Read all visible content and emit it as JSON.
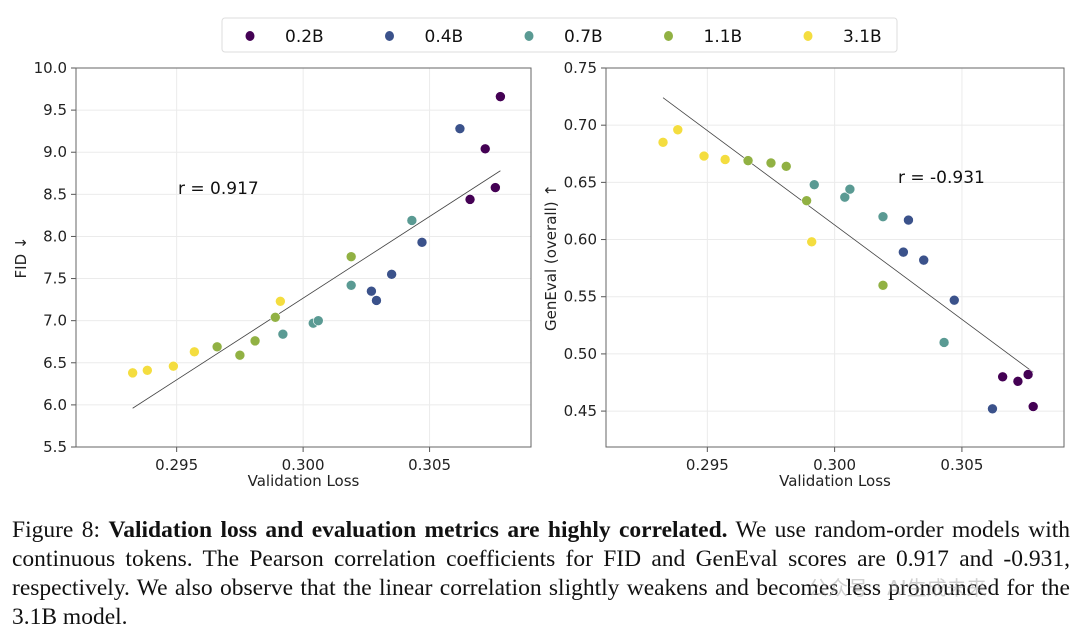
{
  "chart_data": [
    {
      "type": "scatter",
      "title": "",
      "xlabel": "Validation Loss",
      "ylabel": "FID ↓",
      "xlim": [
        0.29102,
        0.30901
      ],
      "ylim": [
        5.5,
        10.0
      ],
      "xticks": [
        "0.295",
        "0.300",
        "0.305"
      ],
      "xtick_values": [
        0.295,
        0.3,
        0.305
      ],
      "yticks": [
        "5.5",
        "6.0",
        "6.5",
        "7.0",
        "7.5",
        "8.0",
        "8.5",
        "9.0",
        "9.5",
        "10.0"
      ],
      "ytick_values": [
        5.5,
        6.0,
        6.5,
        7.0,
        7.5,
        8.0,
        8.5,
        9.0,
        9.5,
        10.0
      ],
      "grid": true,
      "annotation": "r = 0.917",
      "fit_line": {
        "x": [
          0.29326,
          0.3078
        ],
        "y": [
          5.96,
          8.78
        ]
      },
      "series": [
        {
          "name": "0.2B",
          "x": [
            0.3066,
            0.3072,
            0.3076,
            0.3078
          ],
          "y": [
            8.44,
            9.04,
            8.58,
            9.66
          ]
        },
        {
          "name": "0.4B",
          "x": [
            0.3027,
            0.3029,
            0.3035,
            0.3047,
            0.3062
          ],
          "y": [
            7.35,
            7.24,
            7.55,
            7.93,
            9.28
          ]
        },
        {
          "name": "0.7B",
          "x": [
            0.2992,
            0.3004,
            0.3006,
            0.3019,
            0.3043
          ],
          "y": [
            6.84,
            6.97,
            7.0,
            7.42,
            8.19
          ]
        },
        {
          "name": "1.1B",
          "x": [
            0.2966,
            0.2975,
            0.2981,
            0.2989,
            0.3019
          ],
          "y": [
            6.69,
            6.59,
            6.76,
            7.04,
            7.76
          ]
        },
        {
          "name": "3.1B",
          "x": [
            0.29326,
            0.29384,
            0.29487,
            0.2957,
            0.2991
          ],
          "y": [
            6.38,
            6.41,
            6.46,
            6.63,
            7.23
          ]
        }
      ]
    },
    {
      "type": "scatter",
      "title": "",
      "xlabel": "Validation Loss",
      "ylabel": "GenEval (overall) ↑",
      "xlim": [
        0.29102,
        0.30901
      ],
      "ylim": [
        0.4186,
        0.75
      ],
      "xticks": [
        "0.295",
        "0.300",
        "0.305"
      ],
      "xtick_values": [
        0.295,
        0.3,
        0.305
      ],
      "yticks": [
        "0.45",
        "0.50",
        "0.55",
        "0.60",
        "0.65",
        "0.70",
        "0.75"
      ],
      "ytick_values": [
        0.45,
        0.5,
        0.55,
        0.6,
        0.65,
        0.7,
        0.75
      ],
      "grid": true,
      "annotation": "r = -0.931",
      "fit_line": {
        "x": [
          0.29326,
          0.3078
        ],
        "y": [
          0.724,
          0.484
        ]
      },
      "series": [
        {
          "name": "0.2B",
          "x": [
            0.3066,
            0.3072,
            0.3076,
            0.3078
          ],
          "y": [
            0.48,
            0.476,
            0.482,
            0.454
          ]
        },
        {
          "name": "0.4B",
          "x": [
            0.3027,
            0.3029,
            0.3035,
            0.3047,
            0.3062
          ],
          "y": [
            0.589,
            0.617,
            0.582,
            0.547,
            0.452
          ]
        },
        {
          "name": "0.7B",
          "x": [
            0.2992,
            0.3004,
            0.3006,
            0.3019,
            0.3043
          ],
          "y": [
            0.648,
            0.637,
            0.644,
            0.62,
            0.51
          ]
        },
        {
          "name": "1.1B",
          "x": [
            0.2966,
            0.2975,
            0.2981,
            0.2989,
            0.3019
          ],
          "y": [
            0.669,
            0.667,
            0.664,
            0.634,
            0.56
          ]
        },
        {
          "name": "3.1B",
          "x": [
            0.29326,
            0.29384,
            0.29487,
            0.2957,
            0.2991
          ],
          "y": [
            0.685,
            0.696,
            0.673,
            0.67,
            0.598
          ]
        }
      ]
    }
  ],
  "legend": {
    "placement": "top-center",
    "entries": [
      "0.2B",
      "0.4B",
      "0.7B",
      "1.1B",
      "3.1B"
    ],
    "colors": [
      "#440154",
      "#3b528b",
      "#5a9a93",
      "#91b143",
      "#f4dd3f"
    ]
  },
  "caption": {
    "label": "Figure 8:",
    "bold": "Validation loss and evaluation metrics are highly correlated.",
    "text": "We use random-order models with continuous tokens. The Pearson correlation coefficients for FID and GenEval scores are 0.917 and -0.931, respectively. We also observe that the linear correlation slightly weakens and becomes less pronounced for the 3.1B model."
  },
  "watermark": "公众号 · AI生成未来"
}
